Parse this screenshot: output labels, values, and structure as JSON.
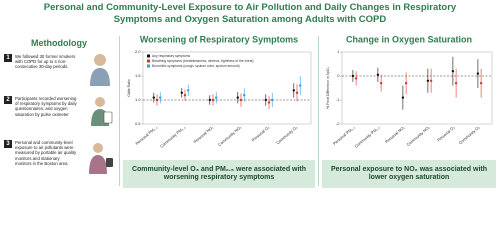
{
  "title": "Personal and Community-Level Exposure to Air Pollution and Daily Changes in Respiratory Symptoms and Oxygen Saturation among Adults with COPD",
  "methodology": {
    "heading": "Methodology",
    "steps": [
      {
        "number": "1",
        "text": "We followed 30 former smokers with COPD for up to 4 non-consecutive 30-day periods."
      },
      {
        "number": "2",
        "text": "Participants recorded worsening of respiratory symptoms by daily questionnaires, and oxygen saturation by pulse oximeter"
      },
      {
        "number": "3",
        "text": "Personal and community-level exposure to air pollutants were measured by portable air quality monitors and stationary monitors in the Boston area"
      }
    ]
  },
  "conclusions": [
    "Community-level O₃ and PM₂.₅ were associated with worsening respiratory symptoms",
    "Personal exposure to NO₂ was associated with lower oxygen saturation"
  ],
  "chart_data": [
    {
      "type": "errorbar",
      "title": "Worsening of Respiratory Symptoms",
      "ylabel": "Odds Ratio",
      "categories": [
        "Personal PM₂.₅",
        "Community PM₂.₅",
        "Personal NO₂",
        "Community NO₂",
        "Personal O₃",
        "Community O₃"
      ],
      "series": [
        {
          "name": "Any respiratory symptoms",
          "color": "#111111",
          "values": [
            1.05,
            1.15,
            1.0,
            1.05,
            1.0,
            1.2
          ],
          "errors": [
            0.1,
            0.1,
            0.1,
            0.12,
            0.12,
            0.15
          ]
        },
        {
          "name": "Breathing symptoms (breathlessness, wheeze, tightness of the chest)",
          "color": "#d9342b",
          "values": [
            1.0,
            1.1,
            1.0,
            1.0,
            0.95,
            1.15
          ],
          "errors": [
            0.12,
            0.12,
            0.12,
            0.14,
            0.14,
            0.18
          ]
        },
        {
          "name": "Bronchitic symptoms (cough, sputum color, sputum amount)",
          "color": "#2f9be0",
          "values": [
            1.05,
            1.2,
            1.05,
            1.1,
            1.0,
            1.3
          ],
          "errors": [
            0.12,
            0.12,
            0.12,
            0.14,
            0.15,
            0.2
          ]
        }
      ],
      "reference_line": 1,
      "ylim": [
        0.5,
        2.0
      ],
      "yticks": [
        0.5,
        {
          "value": 1,
          "label": "1.0"
        },
        1.5,
        {
          "value": 2,
          "label": "2.0"
        }
      ]
    },
    {
      "type": "errorbar",
      "title": "Change in Oxygen Saturation",
      "ylabel": "% Point Difference in SpO₂",
      "categories": [
        "Personal PM₂.₅",
        "Community PM₂.₅",
        "Personal NO₂",
        "Community NO₂",
        "Personal O₃",
        "Community O₃"
      ],
      "series": [
        {
          "color": "#111111",
          "values": [
            0.0,
            0.05,
            -0.9,
            -0.2,
            0.2,
            0.1
          ],
          "errors": [
            0.25,
            0.3,
            0.5,
            0.5,
            0.6,
            0.6
          ]
        },
        {
          "color": "#d9342b",
          "values": [
            -0.1,
            -0.3,
            -0.3,
            -0.2,
            -0.3,
            -0.3
          ],
          "errors": [
            0.3,
            0.35,
            0.45,
            0.5,
            0.6,
            0.6
          ]
        }
      ],
      "reference_line": 0,
      "ylim": [
        -2,
        1
      ],
      "yticks": [
        -2,
        -1,
        0,
        1
      ]
    }
  ]
}
